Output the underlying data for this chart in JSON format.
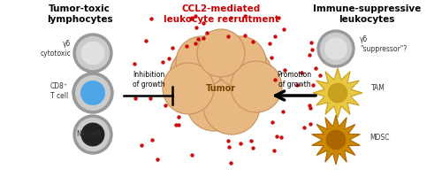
{
  "title_left": "Tumor-toxic\nlymphocytes",
  "title_center": "CCL2-mediated\nleukocyte recruitment",
  "title_right": "Immune-suppressive\nleukocytes",
  "inhibition_text": "Inhibition\nof growth",
  "promotion_text": "Promotion\nof growth",
  "tumor_label": "Tumor",
  "bg_color": "#ffffff",
  "dot_color": "#cc0000",
  "title_center_color": "#cc0000",
  "title_sides_color": "#000000",
  "tumor_color": "#e8b882",
  "tumor_edge": "#c89060",
  "cell_outer": "#999999",
  "cell_mid": "#cccccc",
  "cell_light": "#e0e0e0",
  "cell_blue": "#4da6e8",
  "cell_dark": "#222222",
  "starburst_yellow": "#e8c840",
  "starburst_yellow_inner": "#c8a020",
  "starburst_orange": "#cc8800",
  "starburst_orange_inner": "#aa6600"
}
